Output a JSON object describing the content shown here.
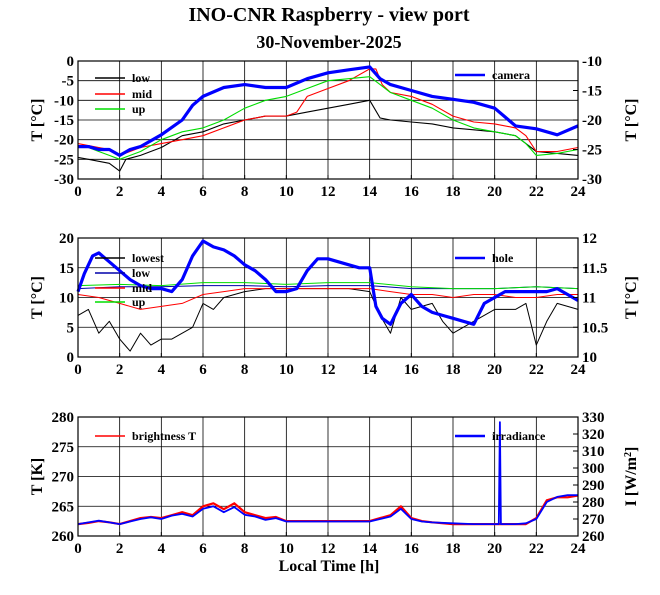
{
  "figure": {
    "title": "INO-CNR Raspberry - view port",
    "subtitle": "30-November-2025",
    "xlabel": "Local Time [h]"
  },
  "colors": {
    "low": "#000000",
    "mid": "#ff0000",
    "up": "#00dd00",
    "axis_blue": "#0000ff",
    "grid": "#000000"
  },
  "chart_data": [
    {
      "type": "line",
      "xlim": [
        0,
        24
      ],
      "xticks": [
        0,
        2,
        4,
        6,
        8,
        10,
        12,
        14,
        16,
        18,
        20,
        22,
        24
      ],
      "ylabel": "T [°C]",
      "ylim": [
        -30,
        0
      ],
      "yticks": [
        -30,
        -25,
        -20,
        -15,
        -10,
        -5,
        0
      ],
      "y2label": "T [°C]",
      "y2lim": [
        -30,
        -10
      ],
      "y2ticks": [
        -30,
        -25,
        -20,
        -15,
        -10
      ],
      "grid": true,
      "series": [
        {
          "name": "low",
          "axis": "left",
          "color": "#000000",
          "x": [
            0,
            0.5,
            1,
            1.5,
            2,
            2.3,
            3,
            4,
            5,
            6,
            7,
            8,
            9,
            10,
            11,
            12,
            13,
            14,
            14.5,
            15,
            16,
            17,
            18,
            19,
            20,
            21,
            21.5,
            22,
            23,
            24
          ],
          "y": [
            -24.5,
            -25,
            -25.5,
            -26,
            -28,
            -25,
            -24,
            -22,
            -19,
            -18,
            -16,
            -15,
            -14,
            -14,
            -13,
            -12,
            -11,
            -10,
            -14.5,
            -15,
            -15.5,
            -16,
            -17,
            -17.5,
            -18,
            -19,
            -21,
            -23,
            -23.5,
            -24
          ]
        },
        {
          "name": "mid",
          "axis": "left",
          "color": "#ff0000",
          "x": [
            0,
            0.5,
            1,
            1.5,
            2,
            3,
            4,
            5,
            6,
            7,
            8,
            9,
            10,
            10.5,
            11,
            12,
            13,
            14,
            14.3,
            14.6,
            15,
            16,
            17,
            18,
            19,
            20,
            21,
            21.5,
            22,
            23,
            24
          ],
          "y": [
            -21,
            -21.5,
            -22,
            -22.5,
            -24,
            -22,
            -21,
            -20,
            -19,
            -17,
            -15,
            -14,
            -14,
            -13,
            -9,
            -7,
            -5,
            -2,
            -2,
            -6,
            -8,
            -9,
            -11,
            -14,
            -15.5,
            -16,
            -17,
            -19,
            -23,
            -23,
            -22
          ]
        },
        {
          "name": "up",
          "axis": "left",
          "color": "#00dd00",
          "x": [
            0,
            0.5,
            1,
            1.5,
            2,
            3,
            4,
            5,
            6,
            7,
            8,
            9,
            10,
            11,
            12,
            13,
            14,
            14.5,
            15,
            16,
            17,
            18,
            19,
            20,
            21,
            21.5,
            22,
            23,
            24
          ],
          "y": [
            -21.5,
            -22,
            -23,
            -24,
            -25,
            -23,
            -20,
            -18,
            -17,
            -15,
            -12,
            -10,
            -9,
            -7,
            -5,
            -4.5,
            -4,
            -6,
            -8,
            -10,
            -12,
            -15,
            -17,
            -18,
            -19,
            -21,
            -24,
            -23.5,
            -22.5
          ]
        },
        {
          "name": "camera",
          "axis": "right",
          "color": "#0000ff",
          "x": [
            0,
            0.5,
            1,
            1.5,
            2,
            2.5,
            3,
            4,
            5,
            5.5,
            6,
            7,
            8,
            9,
            10,
            11,
            12,
            13,
            14,
            14.5,
            15,
            16,
            17,
            18,
            19,
            20,
            20.5,
            21,
            22,
            23,
            24
          ],
          "y": [
            -24.5,
            -24.5,
            -25,
            -25,
            -26,
            -25,
            -24.5,
            -22.5,
            -20,
            -17.5,
            -16,
            -14.5,
            -14,
            -14.5,
            -14.5,
            -13,
            -12,
            -11.5,
            -11,
            -13,
            -14,
            -15,
            -16,
            -16.5,
            -17,
            -18,
            -19.5,
            -21,
            -21.5,
            -22.5,
            -21
          ]
        }
      ]
    },
    {
      "type": "line",
      "xlim": [
        0,
        24
      ],
      "xticks": [
        0,
        2,
        4,
        6,
        8,
        10,
        12,
        14,
        16,
        18,
        20,
        22,
        24
      ],
      "ylabel": "T [°C]",
      "ylim": [
        0,
        20
      ],
      "yticks": [
        0,
        5,
        10,
        15,
        20
      ],
      "y2label": "T [°C]",
      "y2lim": [
        10,
        12
      ],
      "y2ticks": [
        10,
        10.5,
        11,
        11.5,
        12
      ],
      "grid": true,
      "series": [
        {
          "name": "lowest",
          "axis": "left",
          "color": "#000000",
          "x": [
            0,
            0.5,
            1,
            1.5,
            2,
            2.5,
            3,
            3.5,
            4,
            4.5,
            5,
            5.5,
            6,
            6.5,
            7,
            8,
            9,
            10,
            11,
            12,
            13,
            14,
            14.5,
            15,
            15.5,
            16,
            17,
            17.5,
            18,
            19,
            20,
            21,
            21.5,
            22,
            22.5,
            23,
            24
          ],
          "y": [
            7,
            8,
            4,
            6,
            3,
            1,
            4,
            2,
            3,
            3,
            4,
            5,
            9,
            8,
            10,
            11,
            11.5,
            11.5,
            11.5,
            11.5,
            11.5,
            11,
            7,
            4,
            10,
            8,
            9,
            6,
            4,
            6,
            8,
            8,
            9,
            2,
            6,
            9,
            8
          ]
        },
        {
          "name": "low",
          "axis": "left",
          "color": "#0000aa",
          "x": [
            0,
            2,
            4,
            6,
            8,
            10,
            12,
            14,
            16,
            18,
            20,
            22,
            24
          ],
          "y": [
            11.5,
            11.8,
            11.8,
            12,
            12,
            11.8,
            12,
            12,
            11.5,
            11.5,
            11.5,
            11.8,
            11.5
          ]
        },
        {
          "name": "mid",
          "axis": "left",
          "color": "#ff0000",
          "x": [
            0,
            1,
            2,
            3,
            4,
            5,
            6,
            7,
            8,
            10,
            12,
            14,
            15,
            16,
            17,
            18,
            19,
            20,
            21,
            22,
            23,
            24
          ],
          "y": [
            10.5,
            10,
            9,
            8,
            8.5,
            9,
            10.5,
            11,
            11.5,
            11.5,
            11.5,
            11.5,
            11,
            10.5,
            10.5,
            10,
            10.5,
            10.5,
            10,
            10,
            10.5,
            10.5
          ]
        },
        {
          "name": "up",
          "axis": "left",
          "color": "#00dd00",
          "x": [
            0,
            2,
            4,
            6,
            8,
            10,
            12,
            14,
            16,
            18,
            20,
            22,
            24
          ],
          "y": [
            12,
            12.2,
            12,
            12.5,
            12.5,
            12.2,
            12.5,
            12.5,
            11.8,
            11.5,
            11.5,
            11.8,
            11.5
          ]
        },
        {
          "name": "hole",
          "axis": "right",
          "color": "#0000ff",
          "x": [
            0,
            0.3,
            0.7,
            1,
            1.5,
            2,
            2.5,
            3,
            3.5,
            4,
            4.5,
            5,
            5.5,
            6,
            6.5,
            7,
            7.5,
            8,
            8.5,
            9,
            9.5,
            10,
            10.5,
            11,
            11.5,
            12,
            12.5,
            13,
            13.5,
            14,
            14.3,
            14.6,
            15,
            15.5,
            16,
            16.5,
            17,
            17.5,
            18,
            18.5,
            19,
            19.5,
            20,
            20.5,
            21,
            21.5,
            22,
            22.5,
            23,
            23.5,
            24
          ],
          "y": [
            11.1,
            11.4,
            11.7,
            11.75,
            11.6,
            11.45,
            11.3,
            11.2,
            11.15,
            11.15,
            11.1,
            11.3,
            11.7,
            11.95,
            11.85,
            11.8,
            11.7,
            11.55,
            11.45,
            11.3,
            11.1,
            11.1,
            11.15,
            11.45,
            11.65,
            11.65,
            11.6,
            11.55,
            11.5,
            11.5,
            10.85,
            10.65,
            10.55,
            10.9,
            11.05,
            10.85,
            10.75,
            10.7,
            10.65,
            10.6,
            10.55,
            10.9,
            11,
            11.1,
            11.1,
            11.1,
            11.1,
            11.1,
            11.15,
            11.05,
            10.95
          ]
        }
      ]
    },
    {
      "type": "line",
      "xlim": [
        0,
        24
      ],
      "xticks": [
        0,
        2,
        4,
        6,
        8,
        10,
        12,
        14,
        16,
        18,
        20,
        22,
        24
      ],
      "ylabel": "T [K]",
      "ylim": [
        260,
        280
      ],
      "yticks": [
        260,
        265,
        270,
        275,
        280
      ],
      "y2label": "I [W/m",
      "y2label_sup": "2",
      "y2label_end": "]",
      "y2lim": [
        260,
        330
      ],
      "y2ticks": [
        260,
        270,
        280,
        290,
        300,
        310,
        320,
        330
      ],
      "grid": true,
      "series": [
        {
          "name": "brightness T",
          "axis": "left",
          "color": "#ff0000",
          "x": [
            0,
            0.5,
            1,
            1.5,
            2,
            2.5,
            3,
            3.5,
            4,
            4.5,
            5,
            5.5,
            6,
            6.5,
            7,
            7.5,
            8,
            8.5,
            9,
            9.5,
            10,
            11,
            12,
            13,
            14,
            14.5,
            15,
            15.5,
            16,
            16.5,
            17,
            18,
            19,
            20,
            21,
            21.5,
            22,
            22.5,
            23,
            23.5,
            24
          ],
          "y": [
            262,
            262.2,
            262.5,
            262.3,
            262,
            262.5,
            263,
            263.2,
            263,
            263.5,
            264,
            263.5,
            265,
            265.5,
            264.5,
            265.5,
            264,
            263.5,
            263,
            263.2,
            262.5,
            262.5,
            262.5,
            262.5,
            262.5,
            263,
            263.5,
            265,
            263,
            262.5,
            262.3,
            262,
            262,
            262,
            262,
            262,
            263,
            266,
            266.5,
            266.5,
            266.8
          ]
        },
        {
          "name": "irradiance",
          "axis": "right",
          "color": "#0000ff",
          "x": [
            0,
            0.5,
            1,
            1.5,
            2,
            2.5,
            3,
            3.5,
            4,
            4.5,
            5,
            5.5,
            6,
            6.5,
            7,
            7.5,
            8,
            8.5,
            9,
            9.5,
            10,
            11,
            12,
            13,
            14,
            14.5,
            15,
            15.5,
            16,
            16.5,
            17,
            18,
            19,
            20,
            20.2,
            20.25,
            20.3,
            21,
            21.5,
            22,
            22.5,
            23,
            23.5,
            24
          ],
          "y": [
            267,
            268,
            269,
            268,
            267,
            268.5,
            270,
            271,
            270,
            272,
            273,
            271.5,
            276,
            277.5,
            274,
            277,
            272.5,
            271.5,
            269.5,
            270.5,
            268.5,
            268.5,
            268.5,
            268.5,
            268.5,
            270,
            271.5,
            276,
            270,
            268.5,
            268,
            267.5,
            267,
            267,
            267,
            327,
            267,
            267,
            267.5,
            270,
            280,
            283,
            284,
            284
          ]
        }
      ]
    }
  ]
}
